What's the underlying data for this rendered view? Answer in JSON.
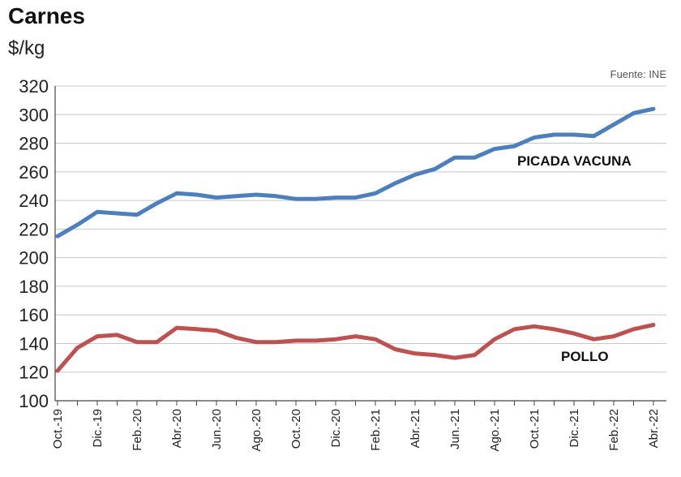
{
  "header": {
    "title": "Carnes",
    "unit": "$/kg",
    "source": "Fuente: INE"
  },
  "chart_data": {
    "type": "line",
    "title": "Carnes",
    "ylabel": "$/kg",
    "xlabel": "",
    "ylim": [
      100,
      320
    ],
    "yticks": [
      100,
      120,
      140,
      160,
      180,
      200,
      220,
      240,
      260,
      280,
      300,
      320
    ],
    "x": [
      "Oct.-19",
      "Nov.-19",
      "Dic.-19",
      "Ene.-20",
      "Feb.-20",
      "Mar.-20",
      "Abr.-20",
      "May.-20",
      "Jun.-20",
      "Jul.-20",
      "Ago.-20",
      "Sep.-20",
      "Oct.-20",
      "Nov.-20",
      "Dic.-20",
      "Ene.-21",
      "Feb.-21",
      "Mar.-21",
      "Abr.-21",
      "May.-21",
      "Jun.-21",
      "Jul.-21",
      "Ago.-21",
      "Sep.-21",
      "Oct.-21",
      "Nov.-21",
      "Dic.-21",
      "Ene.-22",
      "Feb.-22",
      "Mar.-22",
      "Abr.-22"
    ],
    "xtick_labels": [
      "Oct.-19",
      "Dic.-19",
      "Feb.-20",
      "Abr.-20",
      "Jun.-20",
      "Ago.-20",
      "Oct.-20",
      "Dic.-20",
      "Feb.-21",
      "Abr.-21",
      "Jun.-21",
      "Ago.-21",
      "Oct.-21",
      "Dic.-21",
      "Feb.-22",
      "Abr.-22"
    ],
    "grid": true,
    "series": [
      {
        "name": "PICADA VACUNA",
        "color": "#4a7fc1",
        "values": [
          215,
          223,
          232,
          231,
          230,
          238,
          245,
          244,
          242,
          243,
          244,
          243,
          241,
          241,
          242,
          242,
          245,
          252,
          258,
          262,
          270,
          270,
          276,
          278,
          284,
          286,
          286,
          285,
          293,
          301,
          304
        ]
      },
      {
        "name": "POLLO",
        "color": "#c0504d",
        "values": [
          121,
          137,
          145,
          146,
          141,
          141,
          151,
          150,
          149,
          144,
          141,
          141,
          142,
          142,
          143,
          145,
          143,
          136,
          133,
          132,
          130,
          132,
          143,
          150,
          152,
          150,
          147,
          143,
          145,
          150,
          153
        ]
      }
    ]
  }
}
